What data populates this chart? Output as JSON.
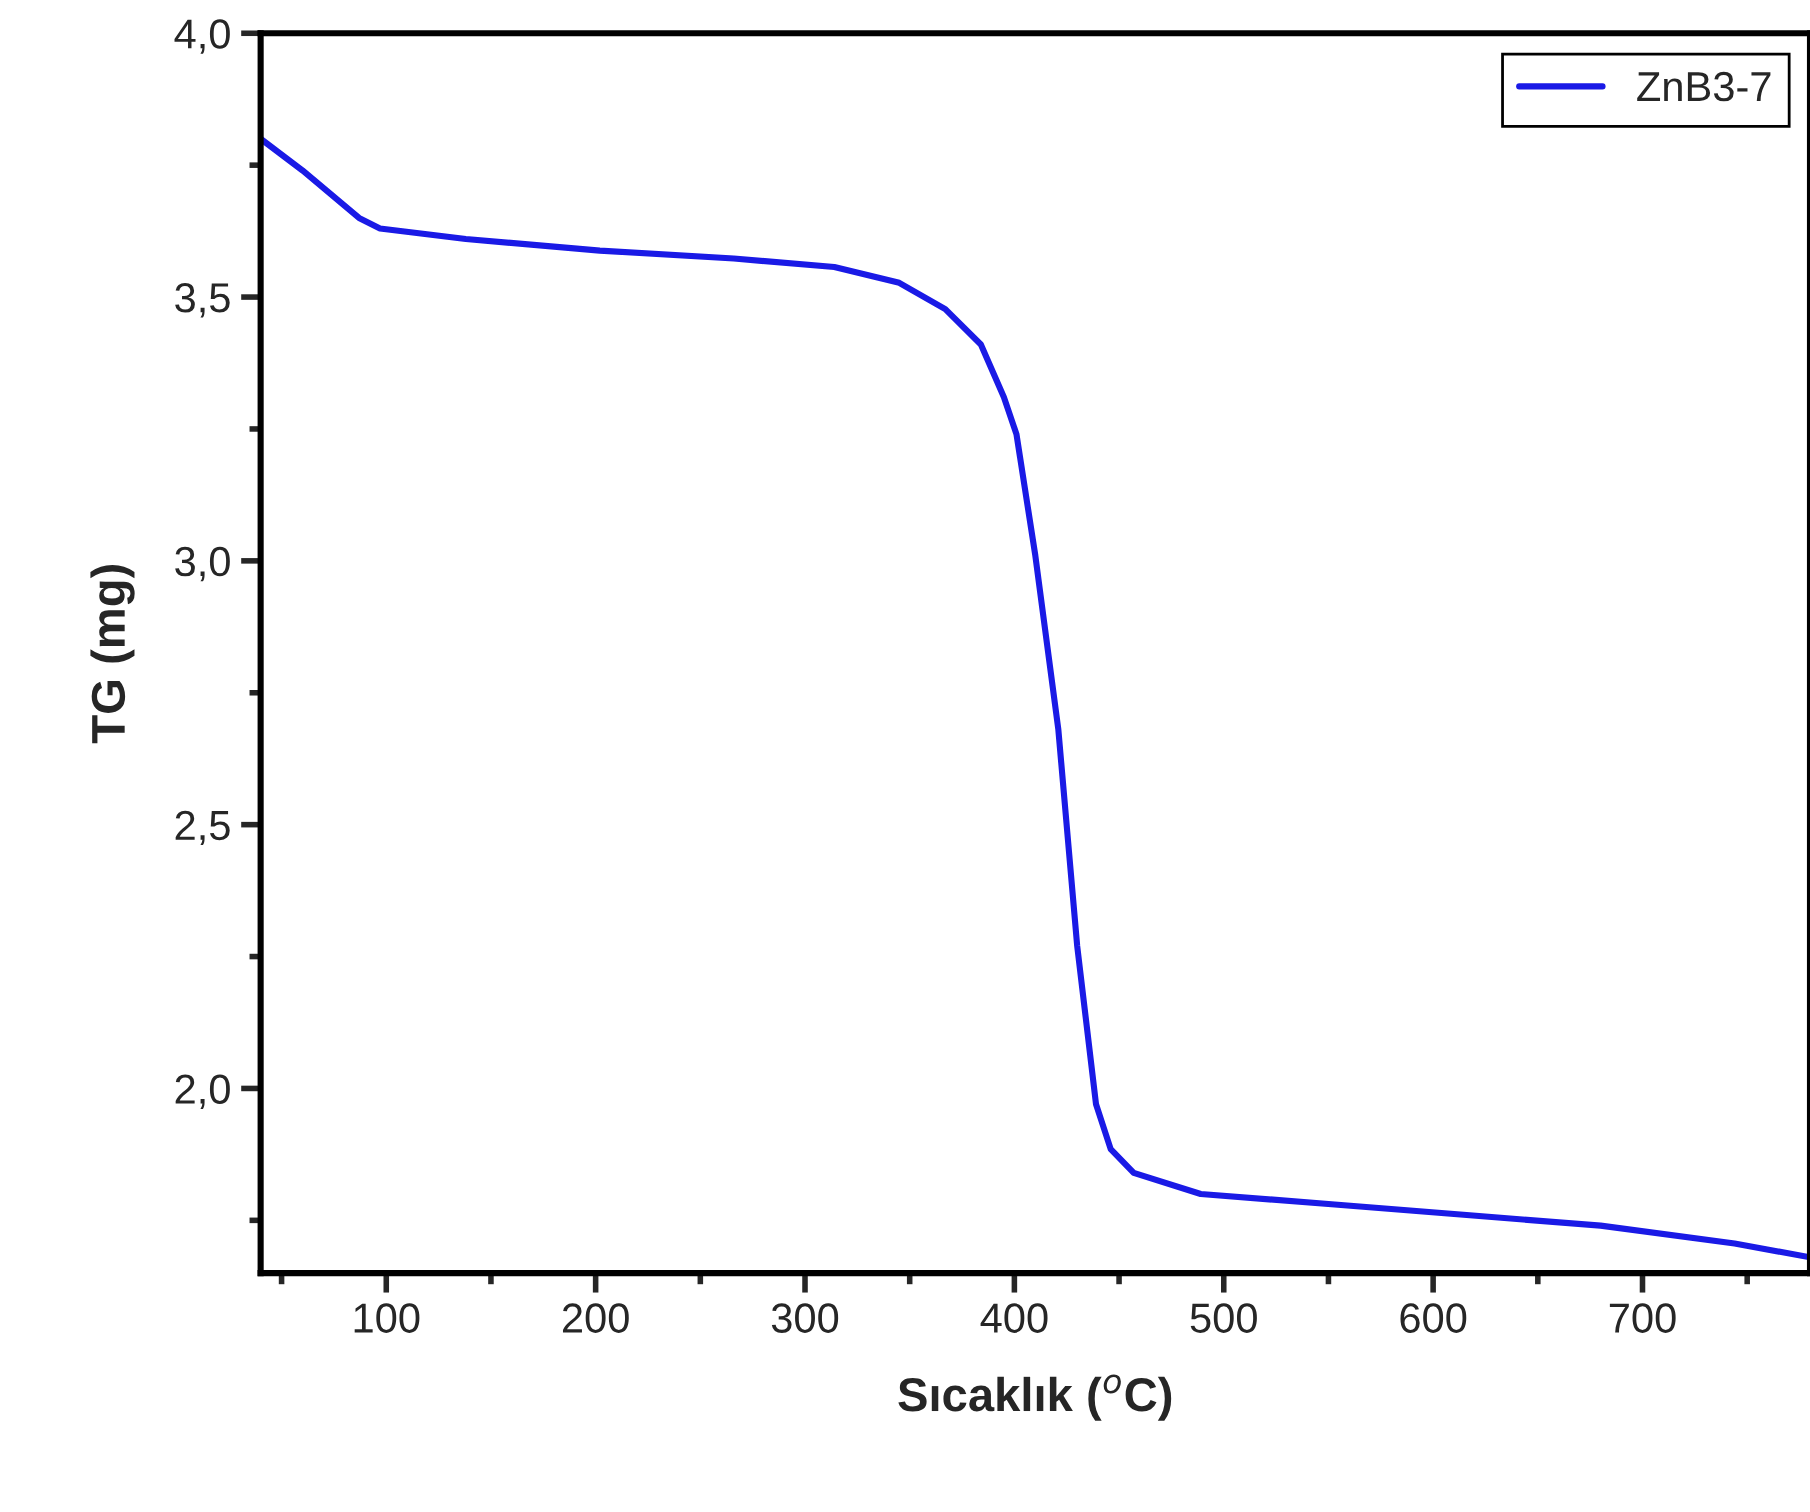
{
  "chart_data": {
    "type": "line",
    "xlabel": "Sıcaklık ($^{o}$C)",
    "ylabel": "TG (mg)",
    "xlim": [
      40,
      780
    ],
    "ylim": [
      1.65,
      4.0
    ],
    "xticks": [
      100,
      200,
      300,
      400,
      500,
      600,
      700
    ],
    "yticks": [
      {
        "value": 2.0,
        "label": "2,0"
      },
      {
        "value": 2.5,
        "label": "2,5"
      },
      {
        "value": 3.0,
        "label": "3,0"
      },
      {
        "value": 3.5,
        "label": "3,5"
      },
      {
        "value": 4.0,
        "label": "4,0"
      }
    ],
    "legend": "top right",
    "grid": false,
    "series": [
      {
        "name": "ZnB3-7",
        "color": "#1a1ae6",
        "x": [
          40,
          60,
          87,
          97,
          138,
          202,
          266,
          314,
          345,
          367,
          384,
          395,
          401,
          410,
          421,
          430,
          439,
          446,
          457,
          489,
          553,
          616,
          680,
          744,
          780
        ],
        "values": [
          3.8,
          3.74,
          3.65,
          3.63,
          3.61,
          3.588,
          3.573,
          3.557,
          3.527,
          3.477,
          3.41,
          3.31,
          3.24,
          3.01,
          2.68,
          2.27,
          1.97,
          1.885,
          1.84,
          1.8,
          1.78,
          1.76,
          1.74,
          1.706,
          1.68
        ]
      }
    ]
  }
}
